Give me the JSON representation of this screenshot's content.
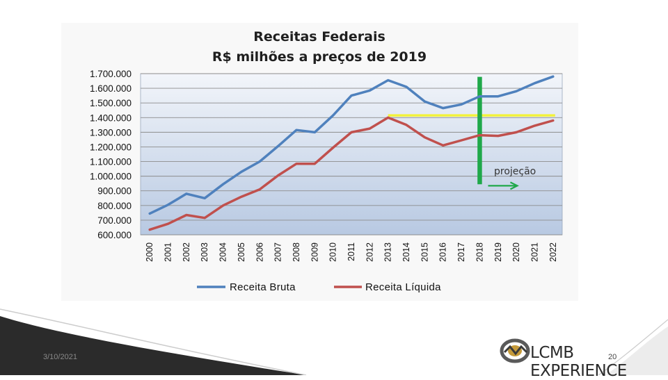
{
  "chart_data": {
    "type": "line",
    "title": "Receitas Federais",
    "subtitle": "R$ milhões a preços de 2019",
    "categories": [
      "2000",
      "2001",
      "2002",
      "2003",
      "2004",
      "2005",
      "2006",
      "2007",
      "2008",
      "2009",
      "2010",
      "2011",
      "2012",
      "2013",
      "2014",
      "2015",
      "2016",
      "2017",
      "2018",
      "2019",
      "2020",
      "2021",
      "2022"
    ],
    "series": [
      {
        "name": "Receita Bruta",
        "color": "#4f81bd",
        "values": [
          745000,
          805000,
          880000,
          850000,
          945000,
          1030000,
          1100000,
          1205000,
          1315000,
          1300000,
          1415000,
          1550000,
          1585000,
          1655000,
          1610000,
          1510000,
          1465000,
          1490000,
          1545000,
          1545000,
          1580000,
          1635000,
          1680000
        ]
      },
      {
        "name": "Receita Líquida",
        "color": "#c0504d",
        "values": [
          635000,
          675000,
          735000,
          715000,
          800000,
          860000,
          910000,
          1005000,
          1085000,
          1085000,
          1195000,
          1300000,
          1325000,
          1400000,
          1350000,
          1265000,
          1210000,
          1245000,
          1280000,
          1275000,
          1300000,
          1345000,
          1380000
        ]
      }
    ],
    "yticks": [
      "1.700.000",
      "1.600.000",
      "1.500.000",
      "1.400.000",
      "1.300.000",
      "1.200.000",
      "1.100.000",
      "1.000.000",
      "900.000",
      "800.000",
      "700.000",
      "600.000"
    ],
    "ylim": [
      600000,
      1700000
    ],
    "grid": true,
    "legend": "bottom",
    "annotations": {
      "reference_level": 1415000,
      "reference_from": "2013",
      "reference_to": "2022",
      "reference_color": "#f2f23a",
      "projection_marker_year": "2018",
      "projection_marker_color": "#1fa84a",
      "projection_label": "projeção"
    }
  },
  "footer": {
    "date": "3/10/2021",
    "page_number": "20",
    "brand": "LCMB EXPERIENCE"
  }
}
